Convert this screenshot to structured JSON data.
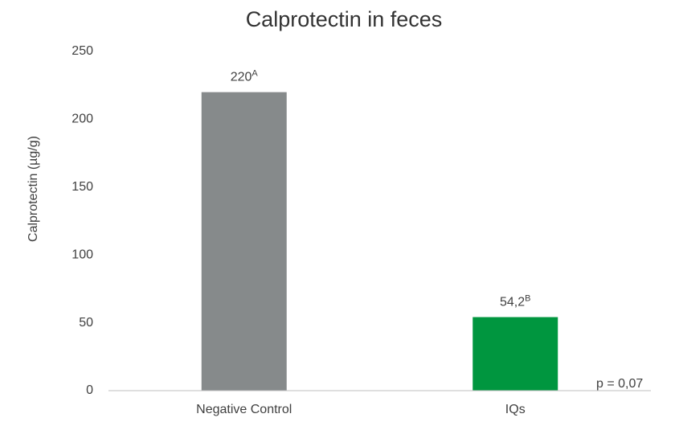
{
  "chart_data": {
    "type": "bar",
    "title": "Calprotectin in feces",
    "y_label": "Calprotectin (µg/g)",
    "categories": [
      "Negative Control",
      "IQs"
    ],
    "values": [
      220,
      54.2
    ],
    "value_labels": [
      "220",
      "54,2"
    ],
    "superscripts": [
      "A",
      "B"
    ],
    "colors": [
      "#868a8b",
      "#00963f"
    ],
    "ylim": [
      0,
      250
    ],
    "yticks": [
      0,
      50,
      100,
      150,
      200,
      250
    ],
    "grid": false,
    "annotation": "p = 0,07"
  }
}
